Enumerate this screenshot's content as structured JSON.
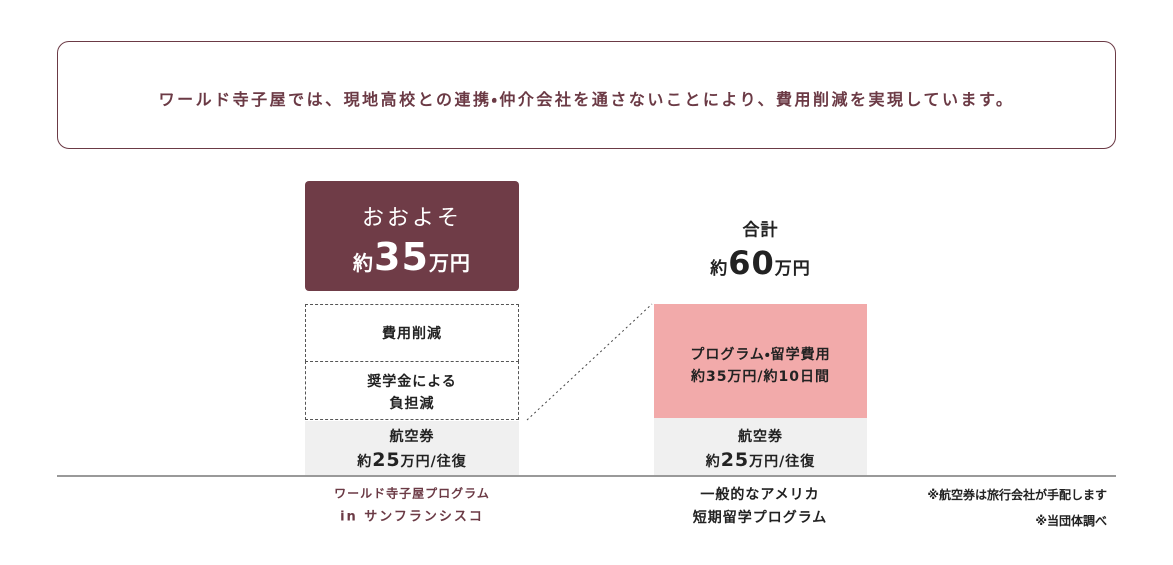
{
  "intro": "ワールド寺子屋では、現地高校との連携・仲介会社を通さないことにより、費用削減を実現しています。",
  "left": {
    "lead": "おおよそ",
    "total_prefix": "約",
    "total_amount": "35",
    "total_unit": "万円",
    "reduction": "費用削減",
    "scholarship": [
      "奨学金による",
      "負担減"
    ],
    "airfare_label": "航空券",
    "airfare_prefix": "約",
    "airfare_amount": "25",
    "airfare_unit": "万円/往復",
    "caption": [
      "ワールド寺子屋プログラム",
      "in サンフランシスコ"
    ]
  },
  "right": {
    "lead": "合計",
    "total_prefix": "約",
    "total_amount": "60",
    "total_unit": "万円",
    "program": [
      "プログラム・留学費用",
      "約35万円/約10日間"
    ],
    "airfare_label": "航空券",
    "airfare_prefix": "約",
    "airfare_amount": "25",
    "airfare_unit": "万円/往復",
    "caption": [
      "一般的なアメリカ",
      "短期留学プログラム"
    ]
  },
  "notes": [
    "※航空券は旅行会社が手配します",
    "※当団体調べ"
  ]
}
